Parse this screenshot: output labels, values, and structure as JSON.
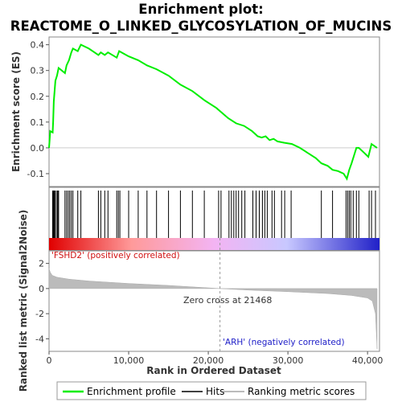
{
  "chart_data": [
    {
      "type": "line",
      "title_line1": "Enrichment plot:",
      "title_line2": "REACTOME_O_LINKED_GLYCOSYLATION_OF_MUCINS",
      "ylabel": "Enrichment score (ES)",
      "xlim": [
        0,
        41500
      ],
      "ylim": [
        -0.15,
        0.43
      ],
      "yticks": [
        -0.1,
        0.0,
        0.1,
        0.2,
        0.3,
        0.4
      ],
      "ytick_labels": [
        "-0.1",
        "0.0",
        "0.1",
        "0.2",
        "0.3",
        "0.4"
      ],
      "series": [
        {
          "name": "Enrichment profile",
          "color": "#00ee00",
          "points": [
            [
              0,
              0.0
            ],
            [
              150,
              0.065
            ],
            [
              450,
              0.06
            ],
            [
              520,
              0.1
            ],
            [
              600,
              0.18
            ],
            [
              800,
              0.26
            ],
            [
              1000,
              0.28
            ],
            [
              1200,
              0.31
            ],
            [
              2000,
              0.29
            ],
            [
              2200,
              0.32
            ],
            [
              2500,
              0.34
            ],
            [
              2800,
              0.37
            ],
            [
              3000,
              0.385
            ],
            [
              3600,
              0.375
            ],
            [
              4000,
              0.4
            ],
            [
              5000,
              0.385
            ],
            [
              6200,
              0.36
            ],
            [
              6500,
              0.37
            ],
            [
              7000,
              0.36
            ],
            [
              7400,
              0.37
            ],
            [
              8500,
              0.35
            ],
            [
              8800,
              0.375
            ],
            [
              10000,
              0.355
            ],
            [
              11200,
              0.34
            ],
            [
              12300,
              0.32
            ],
            [
              13500,
              0.305
            ],
            [
              15000,
              0.28
            ],
            [
              16500,
              0.245
            ],
            [
              18000,
              0.22
            ],
            [
              19500,
              0.185
            ],
            [
              21000,
              0.155
            ],
            [
              22500,
              0.115
            ],
            [
              23500,
              0.095
            ],
            [
              24500,
              0.085
            ],
            [
              25500,
              0.065
            ],
            [
              26200,
              0.045
            ],
            [
              26700,
              0.04
            ],
            [
              27200,
              0.045
            ],
            [
              27700,
              0.03
            ],
            [
              28200,
              0.035
            ],
            [
              28700,
              0.025
            ],
            [
              29500,
              0.02
            ],
            [
              30500,
              0.015
            ],
            [
              31500,
              0.0
            ],
            [
              32500,
              -0.02
            ],
            [
              33500,
              -0.04
            ],
            [
              34200,
              -0.06
            ],
            [
              35000,
              -0.07
            ],
            [
              35600,
              -0.085
            ],
            [
              36300,
              -0.09
            ],
            [
              37000,
              -0.1
            ],
            [
              37400,
              -0.12
            ],
            [
              37700,
              -0.085
            ],
            [
              38000,
              -0.06
            ],
            [
              38300,
              -0.03
            ],
            [
              38600,
              0.0
            ],
            [
              38900,
              0.0
            ],
            [
              39600,
              -0.02
            ],
            [
              40100,
              -0.035
            ],
            [
              40500,
              0.015
            ],
            [
              41200,
              0.0
            ]
          ]
        }
      ]
    },
    {
      "type": "hits",
      "series": [
        {
          "name": "Hits",
          "color": "#000000",
          "positions": [
            450,
            520,
            600,
            700,
            800,
            1000,
            1100,
            1200,
            2000,
            2200,
            2400,
            2600,
            2800,
            3000,
            3600,
            4000,
            6200,
            6500,
            7000,
            7400,
            8500,
            8700,
            8900,
            10000,
            11200,
            12300,
            13500,
            15000,
            16500,
            18000,
            19500,
            21300,
            21600,
            22600,
            22900,
            23200,
            23500,
            23800,
            24200,
            24600,
            25600,
            26000,
            26400,
            26800,
            27100,
            27400,
            28000,
            28300,
            29200,
            29600,
            30400,
            34200,
            35600,
            37300,
            37500,
            37700,
            37900,
            38200,
            38600,
            38900,
            40200,
            40500,
            41000
          ]
        }
      ],
      "gradient_colors": [
        "#e00000",
        "#ff9a9a",
        "#f3b4f3",
        "#c8c8ff",
        "#2020c8"
      ]
    },
    {
      "type": "area",
      "ylabel": "Ranked list metric (Signal2Noise)",
      "xlabel": "Rank in Ordered Dataset",
      "xlim": [
        0,
        41500
      ],
      "ylim": [
        -5,
        3
      ],
      "yticks": [
        -4,
        -2,
        0,
        2
      ],
      "ytick_labels": [
        "-4",
        "-2",
        "0",
        "2"
      ],
      "xticks": [
        0,
        10000,
        20000,
        30000,
        40000
      ],
      "xtick_labels": [
        "0",
        "10,000",
        "20,000",
        "30,000",
        "40,000"
      ],
      "series": [
        {
          "name": "Ranking metric scores",
          "color": "#bbbbbb",
          "points": [
            [
              0,
              1.6
            ],
            [
              150,
              1.3
            ],
            [
              400,
              1.05
            ],
            [
              1000,
              0.9
            ],
            [
              2500,
              0.75
            ],
            [
              5000,
              0.6
            ],
            [
              10000,
              0.4
            ],
            [
              15000,
              0.25
            ],
            [
              21468,
              0.0
            ],
            [
              25000,
              -0.12
            ],
            [
              30000,
              -0.25
            ],
            [
              35000,
              -0.4
            ],
            [
              38000,
              -0.55
            ],
            [
              40000,
              -0.75
            ],
            [
              40600,
              -1.0
            ],
            [
              41000,
              -2.0
            ],
            [
              41200,
              -4.8
            ]
          ]
        }
      ],
      "zero_cross_label": "Zero cross at 21468",
      "zero_cross_x": 21468,
      "pos_label": "'FSHD2' (positively correlated)",
      "neg_label": "'ARH' (negatively correlated)"
    }
  ],
  "legend": {
    "items": [
      {
        "label": "Enrichment profile",
        "color": "#00ee00"
      },
      {
        "label": "Hits",
        "color": "#000000"
      },
      {
        "label": "Ranking metric scores",
        "color": "#bbbbbb"
      }
    ]
  }
}
